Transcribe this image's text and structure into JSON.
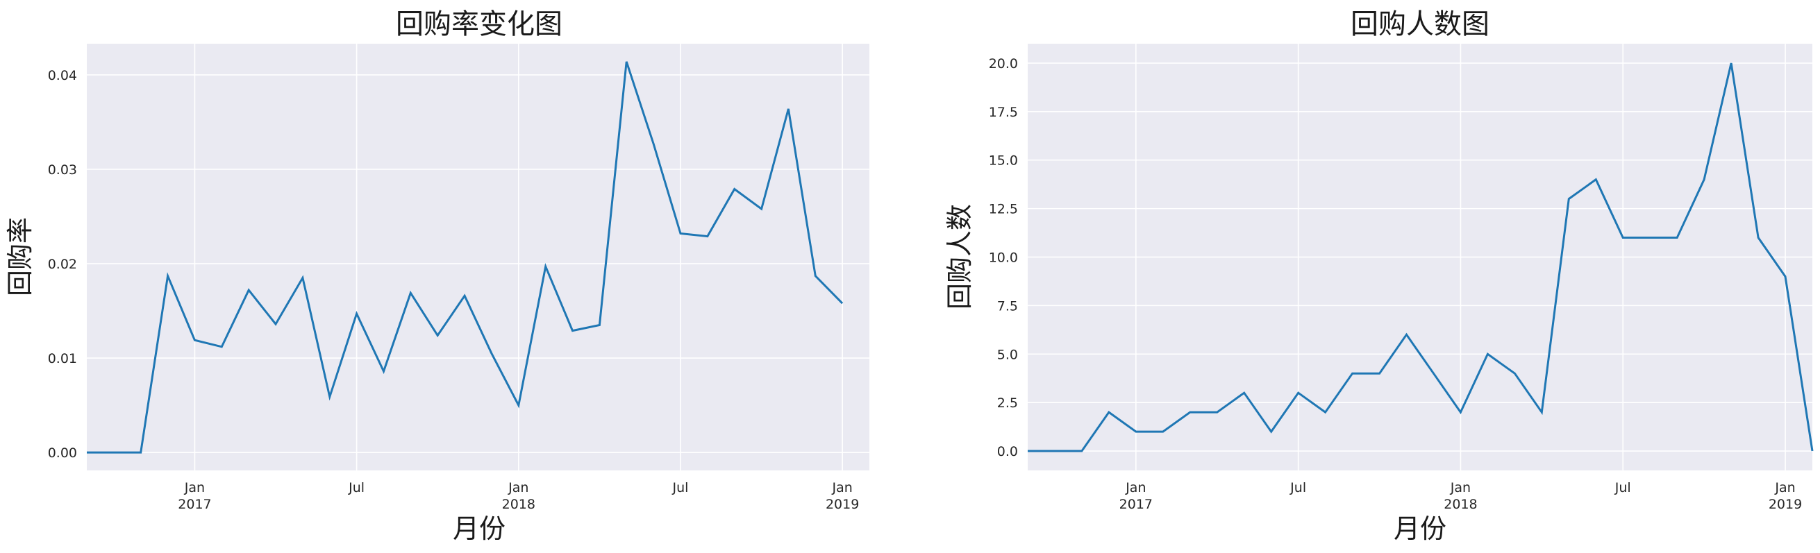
{
  "chart_data": [
    {
      "type": "line",
      "title": "回购率变化图",
      "xlabel": "月份",
      "ylabel": "回购率",
      "x": [
        "2016-09",
        "2016-10",
        "2016-11",
        "2016-12",
        "2017-01",
        "2017-02",
        "2017-03",
        "2017-04",
        "2017-05",
        "2017-06",
        "2017-07",
        "2017-08",
        "2017-09",
        "2017-10",
        "2017-11",
        "2017-12",
        "2018-01",
        "2018-02",
        "2018-03",
        "2018-04",
        "2018-05",
        "2018-06",
        "2018-07",
        "2018-08",
        "2018-09",
        "2018-10",
        "2018-11",
        "2018-12",
        "2019-01"
      ],
      "series": [
        {
          "values": [
            0,
            0,
            0,
            0.0187,
            0.0119,
            0.0112,
            0.0172,
            0.0136,
            0.0185,
            0.0059,
            0.0147,
            0.0086,
            0.0169,
            0.0124,
            0.0166,
            0.0105,
            0.005,
            0.0197,
            0.0129,
            0.0135,
            0.0414,
            0.0327,
            0.0232,
            0.0229,
            0.0279,
            0.0258,
            0.0364,
            0.0187,
            0.0158
          ]
        }
      ],
      "ylim": [
        -0.0019,
        0.0433
      ],
      "yticks": [
        0.0,
        0.01,
        0.02,
        0.03,
        0.04
      ],
      "ytick_labels": [
        "0.00",
        "0.01",
        "0.02",
        "0.03",
        "0.04"
      ],
      "xticks": [
        {
          "date": "2017-01",
          "label": "Jan",
          "sub": "2017"
        },
        {
          "date": "2017-07",
          "label": "Jul",
          "sub": ""
        },
        {
          "date": "2018-01",
          "label": "Jan",
          "sub": "2018"
        },
        {
          "date": "2018-07",
          "label": "Jul",
          "sub": ""
        },
        {
          "date": "2019-01",
          "label": "Jan",
          "sub": "2019"
        }
      ],
      "grid": true,
      "line_color": "#1f77b4",
      "background": "#eaeaf2"
    },
    {
      "type": "line",
      "title": "回购人数图",
      "xlabel": "月份",
      "ylabel": "回购人数",
      "x": [
        "2016-09",
        "2016-10",
        "2016-11",
        "2016-12",
        "2017-01",
        "2017-02",
        "2017-03",
        "2017-04",
        "2017-05",
        "2017-06",
        "2017-07",
        "2017-08",
        "2017-09",
        "2017-10",
        "2017-11",
        "2017-12",
        "2018-01",
        "2018-02",
        "2018-03",
        "2018-04",
        "2018-05",
        "2018-06",
        "2018-07",
        "2018-08",
        "2018-09",
        "2018-10",
        "2018-11",
        "2018-12",
        "2019-01",
        "2019-02"
      ],
      "series": [
        {
          "values": [
            0,
            0,
            0,
            2,
            1,
            1,
            2,
            2,
            3,
            1,
            3,
            2,
            4,
            4,
            6,
            4,
            2,
            5,
            4,
            2,
            13,
            14,
            11,
            11,
            11,
            14,
            20,
            11,
            9,
            0
          ]
        }
      ],
      "ylim": [
        -1.0,
        21.0
      ],
      "yticks": [
        0.0,
        2.5,
        5.0,
        7.5,
        10.0,
        12.5,
        15.0,
        17.5,
        20.0
      ],
      "ytick_labels": [
        "0.0",
        "2.5",
        "5.0",
        "7.5",
        "10.0",
        "12.5",
        "15.0",
        "17.5",
        "20.0"
      ],
      "xticks": [
        {
          "date": "2017-01",
          "label": "Jan",
          "sub": "2017"
        },
        {
          "date": "2017-07",
          "label": "Jul",
          "sub": ""
        },
        {
          "date": "2018-01",
          "label": "Jan",
          "sub": "2018"
        },
        {
          "date": "2018-07",
          "label": "Jul",
          "sub": ""
        },
        {
          "date": "2019-01",
          "label": "Jan",
          "sub": "2019"
        }
      ],
      "grid": true,
      "line_color": "#1f77b4",
      "background": "#eaeaf2"
    }
  ]
}
